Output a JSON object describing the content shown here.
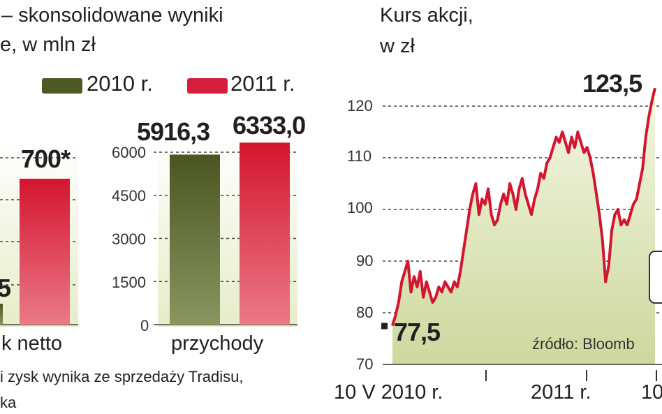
{
  "left_panel": {
    "title_line1": "– skonsolidowane wyniki",
    "title_line2": "e, w mln zł",
    "legend": [
      {
        "label": "2010 r.",
        "color": "#4e5a25"
      },
      {
        "label": "2011 r.",
        "color": "#d61f3a"
      }
    ],
    "footnote_line1": "i zysk wynika ze sprzedaży Tradisu,",
    "footnote_line2": "ka"
  },
  "right_panel": {
    "title_line1": "Kurs akcji,",
    "title_line2": "w zł",
    "source": "źródło: Bloomb"
  },
  "chart_data": [
    {
      "type": "bar",
      "categories": [
        "k netto"
      ],
      "series": [
        {
          "name": "2010 r.",
          "values": [
            null
          ],
          "label": "5"
        },
        {
          "name": "2011 r.",
          "values": [
            700
          ],
          "label": "700*"
        }
      ]
    },
    {
      "type": "bar",
      "categories": [
        "przychody"
      ],
      "series": [
        {
          "name": "2010 r.",
          "values": [
            5916.3
          ],
          "label": "5916,3"
        },
        {
          "name": "2011 r.",
          "values": [
            6333.0
          ],
          "label": "6333,0"
        }
      ],
      "yticks": [
        "0",
        "1500",
        "3000",
        "4500",
        "6000"
      ],
      "ylim": [
        0,
        6600
      ]
    },
    {
      "type": "line",
      "ylim": [
        70,
        125
      ],
      "yticks": [
        "70",
        "80",
        "90",
        "100",
        "110",
        "120"
      ],
      "xticks": [
        "10 V 2010 r.",
        "2011 r.",
        "10"
      ],
      "annotations": [
        {
          "text": "77,5",
          "y": 77.5
        },
        {
          "text": "123,5",
          "y": 123.5
        }
      ],
      "series": [
        {
          "values": [
            77.5,
            79.5,
            82,
            86,
            88,
            90,
            84,
            87,
            85,
            88,
            83,
            86,
            84,
            82,
            83,
            85,
            84,
            86,
            85,
            84,
            86,
            85,
            88,
            92,
            96,
            100,
            103,
            105,
            99,
            102,
            101,
            104,
            99,
            97,
            98,
            101,
            103,
            101,
            105,
            103,
            100,
            104,
            106,
            103,
            101,
            99,
            102,
            104,
            107,
            106,
            109,
            110,
            112,
            114,
            113,
            115,
            113,
            111,
            114,
            112,
            115,
            113,
            111,
            112,
            110,
            107,
            103,
            99,
            94,
            86,
            89,
            96,
            99,
            100,
            97,
            98,
            97,
            99,
            101,
            102,
            105,
            108,
            114,
            118,
            121,
            123.5
          ]
        }
      ]
    }
  ]
}
